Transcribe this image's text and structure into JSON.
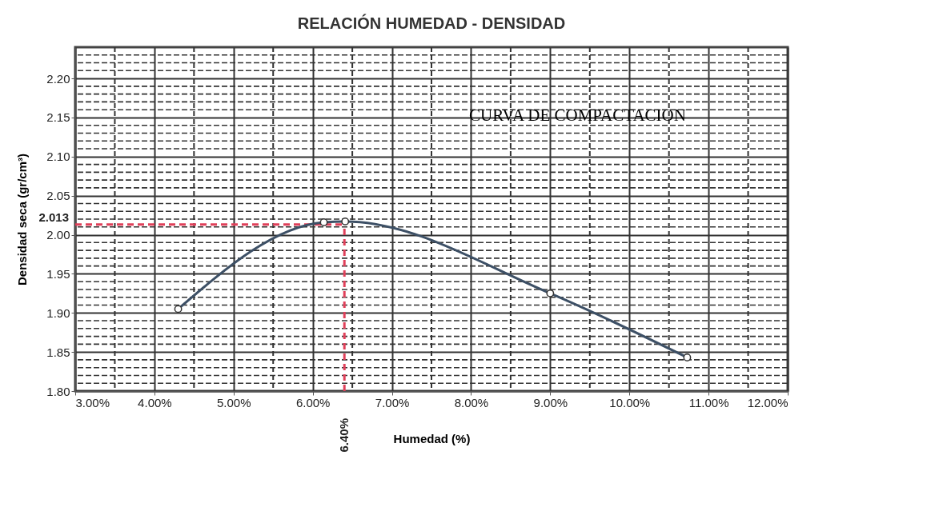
{
  "chart_data": {
    "type": "line",
    "title": "RELACIÓN HUMEDAD - DENSIDAD",
    "xlabel": "Humedad (%)",
    "ylabel": "Densidad seca (gr/cm³)",
    "x": [
      4.3,
      6.14,
      6.41,
      9.0,
      10.73
    ],
    "series": [
      {
        "color": "#3d5066",
        "values": [
          1.905,
          2.016,
          2.017,
          1.925,
          1.843
        ]
      }
    ],
    "xlim": [
      3,
      12
    ],
    "ylim": [
      1.8,
      2.24
    ],
    "xticks": [
      {
        "value": 3,
        "label": "3.00%"
      },
      {
        "value": 4,
        "label": "4.00%"
      },
      {
        "value": 5,
        "label": "5.00%"
      },
      {
        "value": 6,
        "label": "6.00%"
      },
      {
        "value": 7,
        "label": "7.00%"
      },
      {
        "value": 8,
        "label": "8.00%"
      },
      {
        "value": 9,
        "label": "9.00%"
      },
      {
        "value": 10,
        "label": "10.00%"
      },
      {
        "value": 11,
        "label": "11.00%"
      },
      {
        "value": 12,
        "label": "12.00%"
      }
    ],
    "yticks": [
      {
        "value": 1.8,
        "label": "1.80"
      },
      {
        "value": 1.85,
        "label": "1.85"
      },
      {
        "value": 1.9,
        "label": "1.90"
      },
      {
        "value": 1.95,
        "label": "1.95"
      },
      {
        "value": 2.0,
        "label": "2.00"
      },
      {
        "value": 2.05,
        "label": "2.05"
      },
      {
        "value": 2.1,
        "label": "2.10"
      },
      {
        "value": 2.15,
        "label": "2.15"
      },
      {
        "value": 2.2,
        "label": "2.20"
      }
    ],
    "ref_lines": [
      {
        "axis": "y",
        "value": 2.013,
        "label": "2.013",
        "color": "#e0405a",
        "line_style": "dashed"
      },
      {
        "axis": "x",
        "value": 6.4,
        "label": "6.40%",
        "color": "#e0405a",
        "line_style": "dashed"
      }
    ],
    "annotations": [
      "CURVA DE COMPACTACION"
    ],
    "grid": true,
    "marker": "circle",
    "line_style": "solid"
  }
}
